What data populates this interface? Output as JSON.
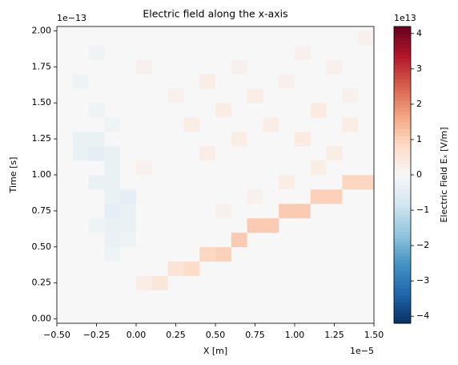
{
  "chart_data": {
    "type": "heatmap",
    "title": "Electric field along the x-axis",
    "x_label": "X [m]",
    "y_label": "Time [s]",
    "x_offset_label": "1e−5",
    "y_offset_label": "1e−13",
    "colorbar_label": "Electric Field Eₓ [V/m]",
    "colorbar_offset_label": "1e13",
    "colormap": "RdBu_r",
    "xlim": [
      -0.5,
      1.5
    ],
    "ylim": [
      -0.03,
      2.03
    ],
    "clim": [
      -4.2,
      4.2
    ],
    "xticks": [
      {
        "value": -0.5,
        "label": "−0.50"
      },
      {
        "value": -0.25,
        "label": "−0.25"
      },
      {
        "value": 0,
        "label": "0.00"
      },
      {
        "value": 0.25,
        "label": "0.25"
      },
      {
        "value": 0.5,
        "label": "0.50"
      },
      {
        "value": 0.75,
        "label": "0.75"
      },
      {
        "value": 1,
        "label": "1.00"
      },
      {
        "value": 1.25,
        "label": "1.25"
      },
      {
        "value": 1.5,
        "label": "1.50"
      }
    ],
    "yticks": [
      {
        "value": 0,
        "label": "0.00"
      },
      {
        "value": 0.25,
        "label": "0.25"
      },
      {
        "value": 0.5,
        "label": "0.50"
      },
      {
        "value": 0.75,
        "label": "0.75"
      },
      {
        "value": 1,
        "label": "1.00"
      },
      {
        "value": 1.25,
        "label": "1.25"
      },
      {
        "value": 1.5,
        "label": "1.50"
      },
      {
        "value": 1.75,
        "label": "1.75"
      },
      {
        "value": 2,
        "label": "2.00"
      }
    ],
    "cticks": [
      {
        "value": -4,
        "label": "−4"
      },
      {
        "value": -3,
        "label": "−3"
      },
      {
        "value": -2,
        "label": "−2"
      },
      {
        "value": -1,
        "label": "−1"
      },
      0,
      1,
      2,
      3,
      4
    ],
    "xbins": [
      -0.5,
      -0.4,
      -0.3,
      -0.2,
      -0.1,
      0,
      0.1,
      0.2,
      0.3,
      0.4,
      0.5,
      0.6,
      0.7,
      0.8,
      0.9,
      1,
      1.1,
      1.2,
      1.3,
      1.4,
      1.5
    ],
    "ybins": [
      0,
      0.1,
      0.2,
      0.3,
      0.4,
      0.5,
      0.6,
      0.7,
      0.8,
      0.9,
      1,
      1.1,
      1.2,
      1.3,
      1.4,
      1.5,
      1.6,
      1.7,
      1.8,
      1.9,
      2
    ],
    "z": [
      [
        0,
        0,
        0,
        0,
        0,
        0,
        0,
        0,
        0,
        0,
        0,
        0,
        0,
        0,
        0,
        0,
        0,
        0,
        0,
        0
      ],
      [
        0,
        0,
        0,
        0,
        0,
        0,
        0,
        0,
        0,
        0,
        0,
        0,
        0,
        0,
        0,
        0,
        0,
        0,
        0,
        0
      ],
      [
        0,
        0,
        0,
        0,
        0,
        0.3,
        0.5,
        0,
        0,
        0,
        0,
        0,
        0,
        0,
        0,
        0,
        0,
        0,
        0,
        0
      ],
      [
        0,
        0,
        0,
        0,
        0,
        0,
        0,
        0.6,
        0.8,
        0,
        0,
        0,
        0,
        0,
        0,
        0,
        0,
        0,
        0,
        0
      ],
      [
        0,
        0,
        0,
        -0.2,
        0,
        0,
        0,
        0,
        0,
        0.9,
        1,
        0,
        0,
        0,
        0,
        0,
        0,
        0,
        0,
        0
      ],
      [
        0,
        0,
        0,
        -0.3,
        -0.2,
        0,
        0,
        0,
        0,
        0,
        0,
        1.1,
        0,
        0,
        0,
        0,
        0,
        0,
        0,
        0
      ],
      [
        0,
        0,
        -0.2,
        -0.3,
        -0.3,
        0,
        0,
        0,
        0,
        0,
        0,
        0,
        1.1,
        1.1,
        0,
        0,
        0,
        0,
        0,
        0
      ],
      [
        0,
        0,
        0,
        -0.4,
        -0.3,
        0,
        0,
        0,
        0,
        0,
        0.2,
        0,
        0,
        0,
        1.1,
        1.1,
        0,
        0,
        0,
        0
      ],
      [
        0,
        0,
        0,
        -0.3,
        -0.4,
        0,
        0,
        0,
        0,
        0,
        0,
        0,
        0.2,
        0,
        0,
        0,
        1,
        1,
        0,
        0
      ],
      [
        0,
        0,
        -0.3,
        -0.3,
        0,
        0,
        0,
        0,
        0,
        0,
        0,
        0,
        0,
        0,
        0.3,
        0,
        0,
        0,
        0.9,
        0.9
      ],
      [
        0,
        0,
        0,
        -0.3,
        0,
        0.2,
        0,
        0,
        0,
        0,
        0,
        0,
        0,
        0,
        0,
        0,
        0.3,
        0,
        0,
        0
      ],
      [
        0,
        -0.3,
        -0.4,
        -0.3,
        0,
        0,
        0,
        0,
        0,
        0.3,
        0,
        0,
        0,
        0,
        0,
        0,
        0,
        0.3,
        0,
        0
      ],
      [
        0,
        -0.3,
        -0.3,
        0,
        0,
        0,
        0,
        0,
        0,
        0,
        0,
        0.3,
        0,
        0,
        0,
        0.4,
        0,
        0,
        0,
        0
      ],
      [
        0,
        0,
        0,
        -0.2,
        0,
        0,
        0,
        0,
        0.3,
        0,
        0,
        0,
        0,
        0.3,
        0,
        0,
        0,
        0,
        0.3,
        0
      ],
      [
        0,
        0,
        -0.2,
        0,
        0,
        0,
        0,
        0,
        0,
        0,
        0.3,
        0,
        0,
        0,
        0,
        0,
        0.4,
        0,
        0,
        0
      ],
      [
        0,
        0,
        0,
        0,
        0,
        0,
        0,
        0.2,
        0,
        0,
        0,
        0,
        0.3,
        0,
        0,
        0,
        0,
        0,
        0.2,
        0
      ],
      [
        0,
        -0.2,
        0,
        0,
        0,
        0,
        0,
        0,
        0,
        0.3,
        0,
        0,
        0,
        0,
        0.2,
        0,
        0,
        0,
        0,
        0
      ],
      [
        0,
        0,
        0,
        0,
        0,
        0.2,
        0,
        0,
        0,
        0,
        0,
        0.2,
        0,
        0,
        0,
        0,
        0,
        0.2,
        0,
        0
      ],
      [
        0,
        0,
        -0.2,
        0,
        0,
        0,
        0,
        0,
        0,
        0,
        0,
        0,
        0,
        0,
        0,
        0.2,
        0,
        0,
        0,
        0
      ],
      [
        0,
        0,
        0,
        0,
        0,
        0,
        0,
        0,
        0,
        0,
        0,
        0,
        0,
        0,
        0,
        0,
        0,
        0,
        0,
        0.2
      ]
    ]
  }
}
